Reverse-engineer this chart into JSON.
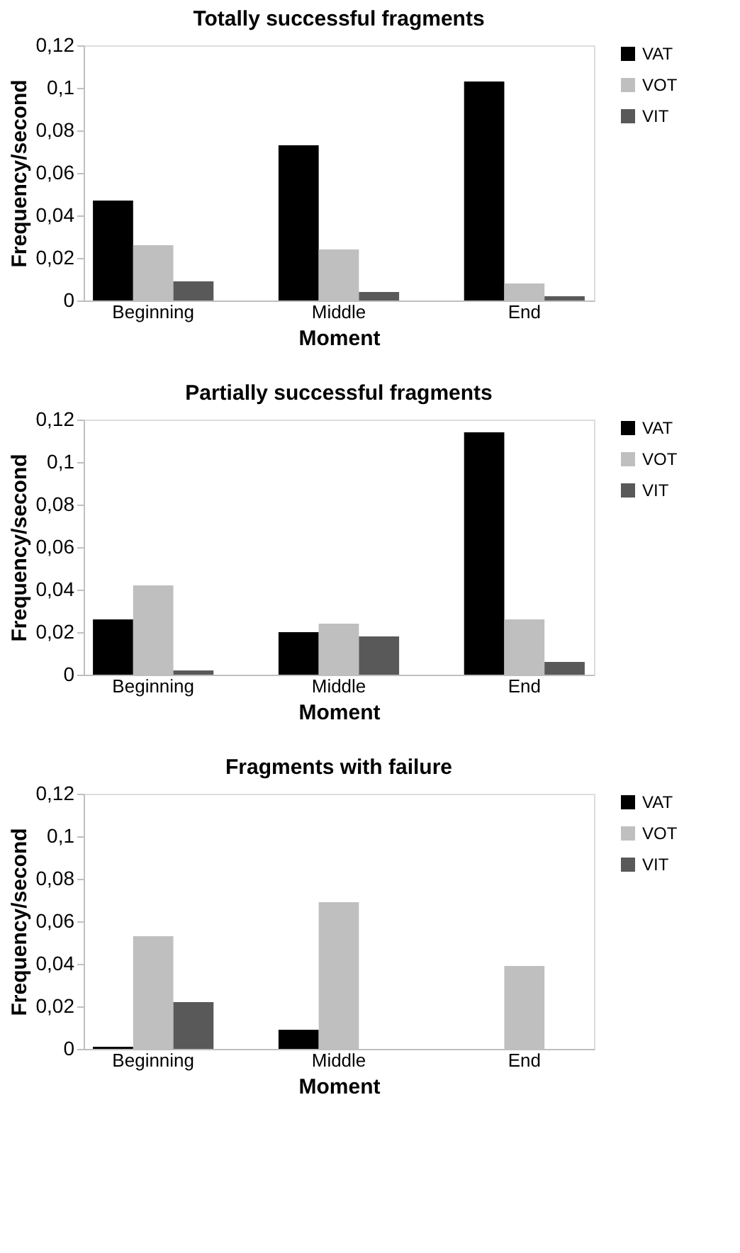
{
  "chart_data": [
    {
      "type": "bar",
      "title": "Totally successful fragments",
      "xlabel": "Moment",
      "ylabel": "Frequency/second",
      "categories": [
        "Beginning",
        "Middle",
        "End"
      ],
      "ylim": [
        0,
        0.12
      ],
      "yticks": [
        0,
        {
          "value": 0.02,
          "label": "0,02"
        },
        {
          "value": 0.04,
          "label": "0,04"
        },
        {
          "value": 0.06,
          "label": "0,06"
        },
        {
          "value": 0.08,
          "label": "0,08"
        },
        {
          "value": 0.1,
          "label": "0,1"
        },
        {
          "value": 0.12,
          "label": "0,12"
        }
      ],
      "grid": false,
      "legend": "right",
      "series": [
        {
          "name": "VAT",
          "color": "#000000",
          "values": [
            0.047,
            0.073,
            0.103
          ]
        },
        {
          "name": "VOT",
          "color": "#bfbfbf",
          "values": [
            0.026,
            0.024,
            0.008
          ]
        },
        {
          "name": "VIT",
          "color": "#595959",
          "values": [
            0.009,
            0.004,
            0.002
          ]
        }
      ]
    },
    {
      "type": "bar",
      "title": "Partially successful fragments",
      "xlabel": "Moment",
      "ylabel": "Frequency/second",
      "categories": [
        "Beginning",
        "Middle",
        "End"
      ],
      "ylim": [
        0,
        0.12
      ],
      "yticks": [
        0,
        {
          "value": 0.02,
          "label": "0,02"
        },
        {
          "value": 0.04,
          "label": "0,04"
        },
        {
          "value": 0.06,
          "label": "0,06"
        },
        {
          "value": 0.08,
          "label": "0,08"
        },
        {
          "value": 0.1,
          "label": "0,1"
        },
        {
          "value": 0.12,
          "label": "0,12"
        }
      ],
      "grid": false,
      "legend": "right",
      "series": [
        {
          "name": "VAT",
          "color": "#000000",
          "values": [
            0.026,
            0.02,
            0.114
          ]
        },
        {
          "name": "VOT",
          "color": "#bfbfbf",
          "values": [
            0.042,
            0.024,
            0.026
          ]
        },
        {
          "name": "VIT",
          "color": "#595959",
          "values": [
            0.002,
            0.018,
            0.006
          ]
        }
      ]
    },
    {
      "type": "bar",
      "title": "Fragments with failure",
      "xlabel": "Moment",
      "ylabel": "Frequency/second",
      "categories": [
        "Beginning",
        "Middle",
        "End"
      ],
      "ylim": [
        0,
        0.12
      ],
      "yticks": [
        0,
        {
          "value": 0.02,
          "label": "0,02"
        },
        {
          "value": 0.04,
          "label": "0,04"
        },
        {
          "value": 0.06,
          "label": "0,06"
        },
        {
          "value": 0.08,
          "label": "0,08"
        },
        {
          "value": 0.1,
          "label": "0,1"
        },
        {
          "value": 0.12,
          "label": "0,12"
        }
      ],
      "grid": false,
      "legend": "right",
      "series": [
        {
          "name": "VAT",
          "color": "#000000",
          "values": [
            0.001,
            0.009,
            0
          ]
        },
        {
          "name": "VOT",
          "color": "#bfbfbf",
          "values": [
            0.053,
            0.069,
            0.039
          ]
        },
        {
          "name": "VIT",
          "color": "#595959",
          "values": [
            0.022,
            0,
            0
          ]
        }
      ]
    }
  ]
}
